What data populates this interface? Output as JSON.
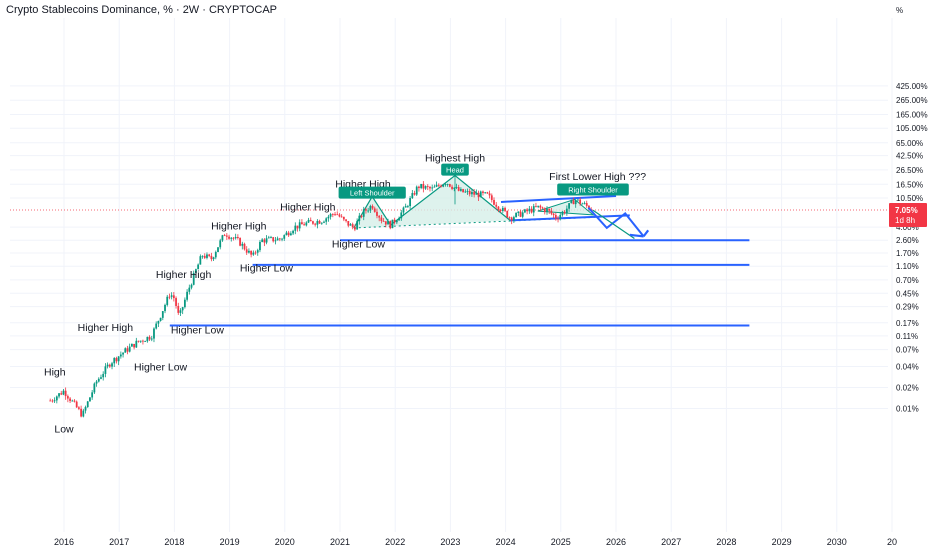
{
  "title": "Crypto Stablecoins Dominance, % · 2W · CRYPTOCAP",
  "colors": {
    "up": "#089981",
    "down": "#f23645",
    "trendline": "#2962ff",
    "pattern_fill": "#d6efe9",
    "tag_bg": "#089981",
    "price_bg": "#f23645"
  },
  "chart_data": {
    "type": "candlestick",
    "y_scale": "log",
    "y_unit": "%",
    "y_tick_labels": [
      "425.00%",
      "265.00%",
      "165.00%",
      "105.00%",
      "65.00%",
      "42.50%",
      "26.50%",
      "16.50%",
      "10.50%",
      "4.00%",
      "2.60%",
      "1.70%",
      "1.10%",
      "0.70%",
      "0.45%",
      "0.29%",
      "0.17%",
      "0.11%",
      "0.07%",
      "0.04%",
      "0.02%",
      "0.01%"
    ],
    "x_tick_labels": [
      "2016",
      "2017",
      "2018",
      "2019",
      "2020",
      "2021",
      "2022",
      "2023",
      "2024",
      "2025",
      "2026",
      "2027",
      "2028",
      "2029",
      "2030",
      "20"
    ],
    "current_price": "7.05%",
    "countdown": "1d 8h",
    "price_path": [
      [
        "2015-10",
        0.013
      ],
      [
        "2016-01",
        0.018
      ],
      [
        "2016-03",
        0.012
      ],
      [
        "2016-05",
        0.008
      ],
      [
        "2016-08",
        0.024
      ],
      [
        "2016-11",
        0.045
      ],
      [
        "2017-02",
        0.065
      ],
      [
        "2017-05",
        0.09
      ],
      [
        "2017-08",
        0.11
      ],
      [
        "2017-10",
        0.22
      ],
      [
        "2017-12",
        0.45
      ],
      [
        "2018-01",
        0.38
      ],
      [
        "2018-02",
        0.2
      ],
      [
        "2018-04",
        0.5
      ],
      [
        "2018-07",
        1.6
      ],
      [
        "2018-09",
        1.4
      ],
      [
        "2018-12",
        3.3
      ],
      [
        "2019-03",
        2.5
      ],
      [
        "2019-06",
        1.5
      ],
      [
        "2019-08",
        2.6
      ],
      [
        "2019-12",
        2.7
      ],
      [
        "2020-03",
        4.0
      ],
      [
        "2020-06",
        4.6
      ],
      [
        "2020-09",
        5.0
      ],
      [
        "2020-12",
        6.5
      ],
      [
        "2021-02",
        4.8
      ],
      [
        "2021-04",
        3.9
      ],
      [
        "2021-06",
        6.5
      ],
      [
        "2021-08",
        8.3
      ],
      [
        "2021-10",
        5.2
      ],
      [
        "2021-12",
        4.3
      ],
      [
        "2022-03",
        7.2
      ],
      [
        "2022-06",
        15.5
      ],
      [
        "2022-09",
        14.0
      ],
      [
        "2022-12",
        18.0
      ],
      [
        "2023-03",
        13.0
      ],
      [
        "2023-06",
        12.0
      ],
      [
        "2023-09",
        11.5
      ],
      [
        "2023-11",
        8.5
      ],
      [
        "2024-02",
        5.5
      ],
      [
        "2024-05",
        6.5
      ],
      [
        "2024-08",
        7.7
      ],
      [
        "2024-10",
        7.0
      ],
      [
        "2024-12",
        5.5
      ],
      [
        "2025-02",
        7.0
      ],
      [
        "2025-04",
        10.0
      ],
      [
        "2025-06",
        8.5
      ],
      [
        "2025-08",
        7.05
      ]
    ],
    "annotations": [
      {
        "text": "Low",
        "date": "2016-01",
        "value": 0.0045
      },
      {
        "text": "High",
        "date": "2015-11",
        "value": 0.03
      },
      {
        "text": "Higher High",
        "date": "2016-10",
        "value": 0.13
      },
      {
        "text": "Higher Low",
        "date": "2017-10",
        "value": 0.035
      },
      {
        "text": "Higher High",
        "date": "2018-03",
        "value": 0.75
      },
      {
        "text": "Higher Low",
        "date": "2018-06",
        "value": 0.12
      },
      {
        "text": "Higher High",
        "date": "2019-03",
        "value": 3.7
      },
      {
        "text": "Higher Low",
        "date": "2019-09",
        "value": 0.92
      },
      {
        "text": "Higher High",
        "date": "2020-06",
        "value": 6.9
      },
      {
        "text": "Higher Low",
        "date": "2021-05",
        "value": 2.05
      },
      {
        "text": "Higher High",
        "date": "2021-06",
        "value": 14.8
      },
      {
        "text": "Highest High",
        "date": "2023-02",
        "value": 35
      },
      {
        "text": "First Lower High ???",
        "date": "2025-09",
        "value": 19
      }
    ],
    "pattern_tags": [
      {
        "text": "Left Shoulder",
        "date": "2021-08",
        "value": 11.7
      },
      {
        "text": "Head",
        "date": "2023-02",
        "value": 25
      },
      {
        "text": "Right Shoulder",
        "date": "2025-08",
        "value": 13.0
      }
    ],
    "horizontal_lines": [
      {
        "from": "2021-01",
        "to": "2028-06",
        "value": 2.6
      },
      {
        "from": "2019-06",
        "to": "2028-06",
        "value": 1.15
      },
      {
        "from": "2017-12",
        "to": "2028-06",
        "value": 0.155
      }
    ]
  }
}
